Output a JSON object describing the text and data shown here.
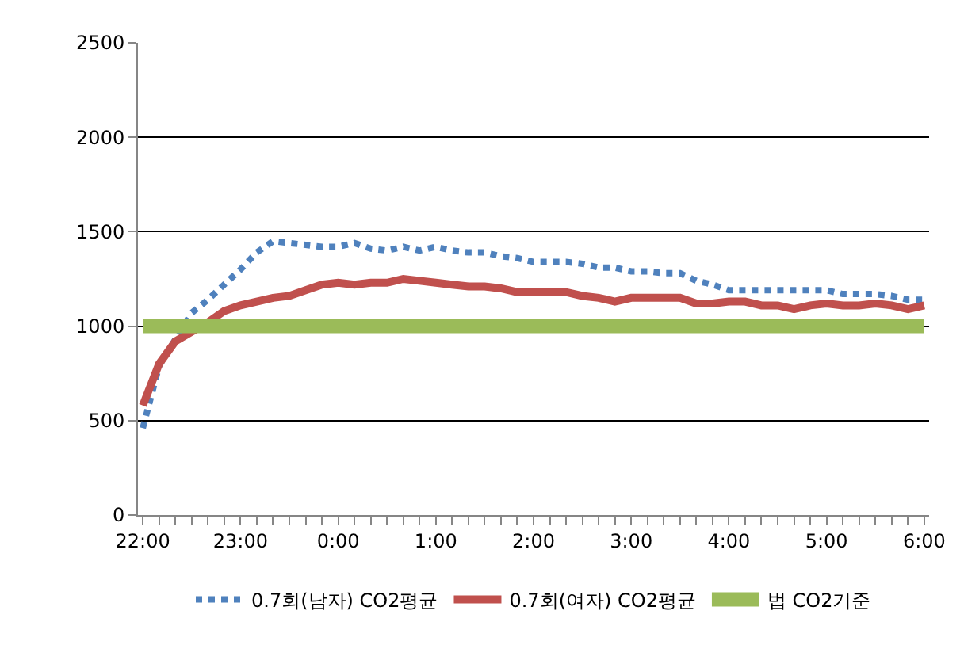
{
  "chart_data": {
    "type": "line",
    "categories": [
      "22:00",
      null,
      null,
      null,
      null,
      null,
      "23:00",
      null,
      null,
      null,
      null,
      null,
      "0:00",
      null,
      null,
      null,
      null,
      null,
      "1:00",
      null,
      null,
      null,
      null,
      null,
      "2:00",
      null,
      null,
      null,
      null,
      null,
      "3:00",
      null,
      null,
      null,
      null,
      null,
      "4:00",
      null,
      null,
      null,
      null,
      null,
      "5:00",
      null,
      null,
      null,
      null,
      null,
      "6:00"
    ],
    "ylim": [
      0,
      2500
    ],
    "yticks": [
      0,
      500,
      1000,
      1500,
      2000,
      2500
    ],
    "grid": "y",
    "legend": "bottom",
    "marker": "none",
    "series": [
      {
        "name": "0.7회(남자) CO2평균",
        "color": "#4f81bd",
        "line_style": "dotted",
        "values": [
          460,
          790,
          930,
          1070,
          1140,
          1220,
          1300,
          1390,
          1450,
          1440,
          1430,
          1420,
          1420,
          1440,
          1410,
          1400,
          1420,
          1400,
          1420,
          1400,
          1390,
          1390,
          1370,
          1360,
          1340,
          1340,
          1340,
          1330,
          1310,
          1310,
          1290,
          1290,
          1280,
          1280,
          1240,
          1220,
          1190,
          1190,
          1190,
          1190,
          1190,
          1190,
          1190,
          1170,
          1170,
          1170,
          1160,
          1140,
          1140
        ]
      },
      {
        "name": "0.7회(여자) CO2평균",
        "color": "#c0504d",
        "line_style": "solid",
        "values": [
          580,
          800,
          920,
          970,
          1020,
          1080,
          1110,
          1130,
          1150,
          1160,
          1190,
          1220,
          1230,
          1220,
          1230,
          1230,
          1250,
          1240,
          1230,
          1220,
          1210,
          1210,
          1200,
          1180,
          1180,
          1180,
          1180,
          1160,
          1150,
          1130,
          1150,
          1150,
          1150,
          1150,
          1120,
          1120,
          1130,
          1130,
          1110,
          1110,
          1090,
          1110,
          1120,
          1110,
          1110,
          1120,
          1110,
          1090,
          1110
        ]
      },
      {
        "name": "법 CO2기준",
        "color": "#9bbb59",
        "line_style": "solid",
        "values": [
          1000,
          1000,
          1000,
          1000,
          1000,
          1000,
          1000,
          1000,
          1000,
          1000,
          1000,
          1000,
          1000,
          1000,
          1000,
          1000,
          1000,
          1000,
          1000,
          1000,
          1000,
          1000,
          1000,
          1000,
          1000,
          1000,
          1000,
          1000,
          1000,
          1000,
          1000,
          1000,
          1000,
          1000,
          1000,
          1000,
          1000,
          1000,
          1000,
          1000,
          1000,
          1000,
          1000,
          1000,
          1000,
          1000,
          1000,
          1000,
          1000
        ]
      }
    ]
  }
}
